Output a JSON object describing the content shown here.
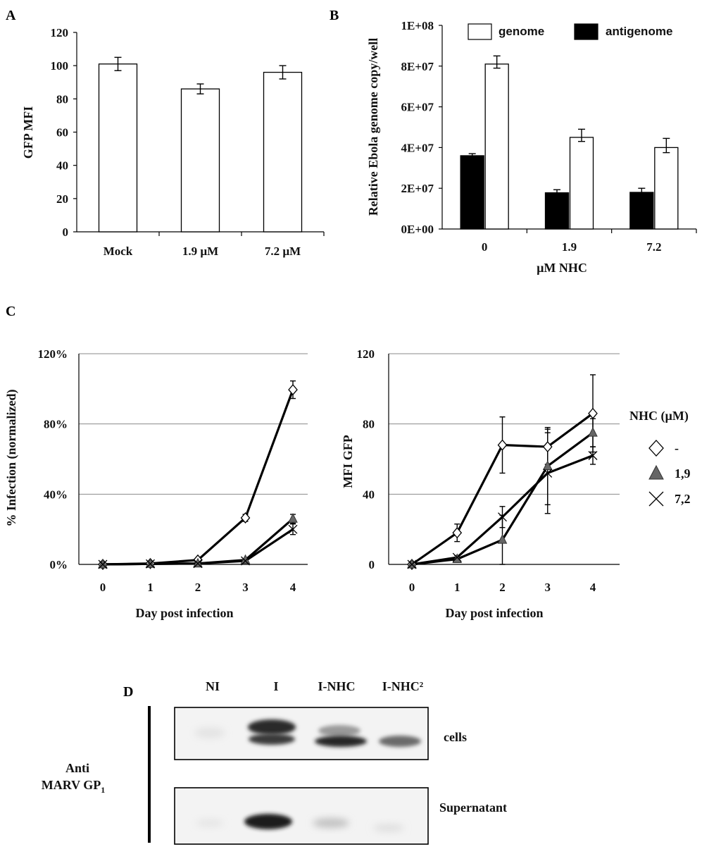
{
  "panels": {
    "A": "A",
    "B": "B",
    "C": "C",
    "D": "D"
  },
  "chart_data": [
    {
      "id": "A",
      "type": "bar",
      "title": "",
      "xlabel": "",
      "ylabel": "GFP MFI",
      "categories": [
        "Mock",
        "1.9 µM",
        "7.2 µM"
      ],
      "values": [
        101,
        86,
        96
      ],
      "errors": [
        4,
        3,
        4
      ],
      "ylim": [
        0,
        120
      ],
      "yticks": [
        "0",
        "20",
        "40",
        "60",
        "80",
        "100",
        "120"
      ],
      "bar_color": "#ffffff",
      "grid": false
    },
    {
      "id": "B",
      "type": "bar",
      "title": "",
      "xlabel": "µM NHC",
      "ylabel": "Relative Ebola genome copy/well",
      "categories": [
        "0",
        "1.9",
        "7.2"
      ],
      "ylim": [
        0,
        100000000
      ],
      "yticks": [
        "0E+00",
        "2E+07",
        "4E+07",
        "6E+07",
        "8E+07",
        "1E+08"
      ],
      "legend_position": "top",
      "series": [
        {
          "name": "antigenome",
          "color": "#000000",
          "values": [
            36000000,
            17800000,
            18000000
          ],
          "errors": [
            500000,
            1000000,
            1500000
          ]
        },
        {
          "name": "genome",
          "color": "#ffffff",
          "values": [
            81000000,
            45000000,
            40000000
          ],
          "errors": [
            2000000,
            2000000,
            2500000
          ]
        }
      ],
      "grid": false
    },
    {
      "id": "C-left",
      "type": "line",
      "xlabel": "Day post infection",
      "ylabel": "% Infection (normalized)",
      "x": [
        0,
        1,
        2,
        3,
        4
      ],
      "ylim": [
        0,
        120
      ],
      "yticks": [
        "0%",
        "40%",
        "80%",
        "120%"
      ],
      "grid": true,
      "series": [
        {
          "name": "-",
          "marker": "diamond",
          "values": [
            0,
            0.5,
            2.5,
            26.5,
            99.5
          ],
          "errors": [
            0,
            0,
            0,
            2,
            5
          ]
        },
        {
          "name": "1,9",
          "marker": "triangle",
          "values": [
            0,
            0.3,
            0.5,
            2.5,
            26
          ],
          "errors": [
            0,
            0,
            0,
            0,
            2.5
          ]
        },
        {
          "name": "7,2",
          "marker": "x",
          "values": [
            0,
            0.3,
            0.5,
            2,
            20
          ],
          "errors": [
            0,
            0,
            0,
            0,
            3
          ]
        }
      ]
    },
    {
      "id": "C-right",
      "type": "line",
      "xlabel": "Day post infection",
      "ylabel": "MFI GFP",
      "x": [
        0,
        1,
        2,
        3,
        4
      ],
      "ylim": [
        0,
        120
      ],
      "yticks": [
        "0",
        "40",
        "80",
        "120"
      ],
      "grid": true,
      "legend_title": "NHC (µM)",
      "series": [
        {
          "name": "-",
          "marker": "diamond",
          "values": [
            0,
            18,
            68,
            67,
            86
          ],
          "errors": [
            0,
            5,
            16,
            10,
            22
          ]
        },
        {
          "name": "1,9",
          "marker": "triangle",
          "values": [
            0,
            3,
            14,
            56,
            75
          ],
          "errors": [
            0,
            1,
            14,
            22,
            8
          ]
        },
        {
          "name": "7,2",
          "marker": "x",
          "values": [
            0,
            4,
            27,
            52,
            62
          ],
          "errors": [
            0,
            1,
            6,
            23,
            5
          ]
        }
      ]
    }
  ],
  "blot": {
    "lanes": [
      "NI",
      "I",
      "I-NHC",
      "I-NHC²"
    ],
    "rows": [
      "cells",
      "Supernatant"
    ],
    "antibody_line1": "Anti",
    "antibody_line2": "MARV GP",
    "antibody_sub": "1"
  }
}
